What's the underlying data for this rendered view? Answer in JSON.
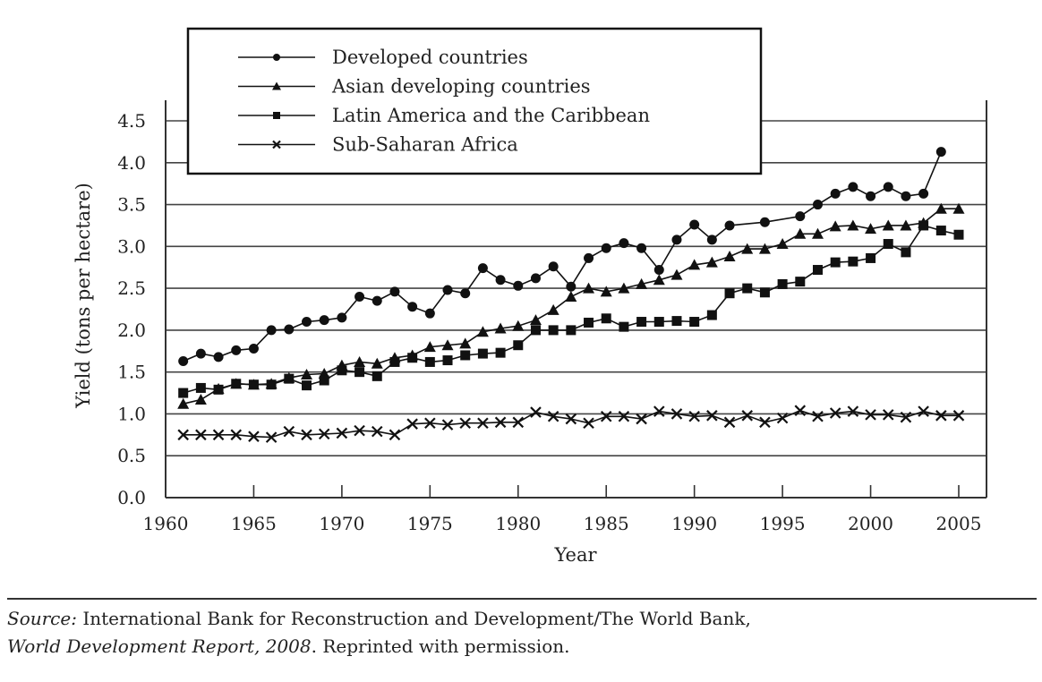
{
  "chart_data": {
    "type": "line",
    "title": "",
    "xlabel": "Year",
    "ylabel": "Yield (tons  per hectare)",
    "xlim": [
      1960,
      2006
    ],
    "ylim": [
      0,
      4.5
    ],
    "xticks": [
      "1960",
      "1965",
      "1970",
      "1975",
      "1980",
      "1985",
      "1990",
      "1995",
      "2000",
      "2005"
    ],
    "xtick_values": [
      1960,
      1965,
      1970,
      1975,
      1980,
      1985,
      1990,
      1995,
      2000,
      2005
    ],
    "yticks": [
      "0.0",
      "0.5",
      "1.0",
      "1.5",
      "2.0",
      "2.5",
      "3.0",
      "3.5",
      "4.0",
      "4.5"
    ],
    "ytick_values": [
      0,
      0.5,
      1.0,
      1.5,
      2.0,
      2.5,
      3.0,
      3.5,
      4.0,
      4.5
    ],
    "grid": "horizontal",
    "legend_position": "top-left",
    "series": [
      {
        "name": "Developed countries",
        "marker": "circle",
        "x": [
          1961,
          1962,
          1963,
          1964,
          1965,
          1966,
          1967,
          1968,
          1969,
          1970,
          1971,
          1972,
          1973,
          1974,
          1975,
          1976,
          1977,
          1978,
          1979,
          1980,
          1981,
          1982,
          1983,
          1984,
          1985,
          1986,
          1987,
          1988,
          1989,
          1990,
          1991,
          1992,
          1994,
          1996,
          1997,
          1998,
          1999,
          2000,
          2001,
          2002,
          2003,
          2004
        ],
        "values": [
          1.63,
          1.72,
          1.68,
          1.76,
          1.78,
          2.0,
          2.01,
          2.1,
          2.12,
          2.15,
          2.4,
          2.35,
          2.46,
          2.28,
          2.2,
          2.48,
          2.44,
          2.74,
          2.6,
          2.53,
          2.62,
          2.76,
          2.52,
          2.86,
          2.98,
          3.04,
          2.98,
          2.72,
          3.08,
          3.26,
          3.08,
          3.25,
          3.29,
          3.36,
          3.5,
          3.63,
          3.71,
          3.6,
          3.71,
          3.6,
          3.63,
          4.13
        ]
      },
      {
        "name": "Asian developing countries",
        "marker": "triangle",
        "x": [
          1961,
          1962,
          1963,
          1964,
          1965,
          1966,
          1967,
          1968,
          1969,
          1970,
          1971,
          1972,
          1973,
          1974,
          1975,
          1976,
          1977,
          1978,
          1979,
          1980,
          1981,
          1982,
          1983,
          1984,
          1985,
          1986,
          1987,
          1988,
          1989,
          1990,
          1991,
          1992,
          1993,
          1994,
          1995,
          1996,
          1997,
          1998,
          1999,
          2000,
          2001,
          2002,
          2003,
          2004,
          2005
        ],
        "values": [
          1.12,
          1.17,
          1.3,
          1.36,
          1.35,
          1.36,
          1.43,
          1.47,
          1.48,
          1.58,
          1.62,
          1.6,
          1.67,
          1.7,
          1.8,
          1.82,
          1.84,
          1.98,
          2.02,
          2.05,
          2.12,
          2.24,
          2.4,
          2.5,
          2.46,
          2.5,
          2.55,
          2.6,
          2.66,
          2.78,
          2.81,
          2.88,
          2.97,
          2.97,
          3.03,
          3.15,
          3.15,
          3.24,
          3.25,
          3.21,
          3.25,
          3.25,
          3.28,
          3.45,
          3.45
        ]
      },
      {
        "name": "Latin America and the Caribbean",
        "marker": "square",
        "x": [
          1961,
          1962,
          1963,
          1964,
          1965,
          1966,
          1967,
          1968,
          1969,
          1970,
          1971,
          1972,
          1973,
          1974,
          1975,
          1976,
          1977,
          1978,
          1979,
          1980,
          1981,
          1982,
          1983,
          1984,
          1985,
          1986,
          1987,
          1988,
          1989,
          1990,
          1991,
          1992,
          1993,
          1994,
          1995,
          1996,
          1997,
          1998,
          1999,
          2000,
          2001,
          2002,
          2003,
          2004,
          2005
        ],
        "values": [
          1.25,
          1.31,
          1.29,
          1.36,
          1.35,
          1.35,
          1.42,
          1.34,
          1.4,
          1.52,
          1.5,
          1.45,
          1.62,
          1.67,
          1.62,
          1.64,
          1.7,
          1.72,
          1.73,
          1.82,
          2.0,
          2.0,
          2.0,
          2.09,
          2.14,
          2.04,
          2.1,
          2.1,
          2.11,
          2.1,
          2.18,
          2.44,
          2.5,
          2.45,
          2.55,
          2.58,
          2.72,
          2.81,
          2.82,
          2.86,
          3.03,
          2.93,
          3.25,
          3.19,
          3.14
        ]
      },
      {
        "name": "Sub-Saharan Africa",
        "marker": "x",
        "x": [
          1961,
          1962,
          1963,
          1964,
          1965,
          1966,
          1967,
          1968,
          1969,
          1970,
          1971,
          1972,
          1973,
          1974,
          1975,
          1976,
          1977,
          1978,
          1979,
          1980,
          1981,
          1982,
          1983,
          1984,
          1985,
          1986,
          1987,
          1988,
          1989,
          1990,
          1991,
          1992,
          1993,
          1994,
          1995,
          1996,
          1997,
          1998,
          1999,
          2000,
          2001,
          2002,
          2003,
          2004,
          2005
        ],
        "values": [
          0.75,
          0.75,
          0.75,
          0.75,
          0.73,
          0.72,
          0.79,
          0.75,
          0.76,
          0.77,
          0.8,
          0.79,
          0.75,
          0.88,
          0.89,
          0.87,
          0.89,
          0.89,
          0.9,
          0.9,
          1.02,
          0.97,
          0.94,
          0.89,
          0.97,
          0.97,
          0.94,
          1.03,
          1.0,
          0.97,
          0.98,
          0.9,
          0.98,
          0.9,
          0.95,
          1.04,
          0.97,
          1.01,
          1.03,
          0.99,
          0.99,
          0.96,
          1.03,
          0.98,
          0.98
        ]
      }
    ]
  },
  "source": {
    "label": "Source:",
    "text1": " International Bank for Reconstruction and Development/The World Bank,",
    "report": "World Development Report, 2008",
    "text2": ". Reprinted with permission."
  }
}
